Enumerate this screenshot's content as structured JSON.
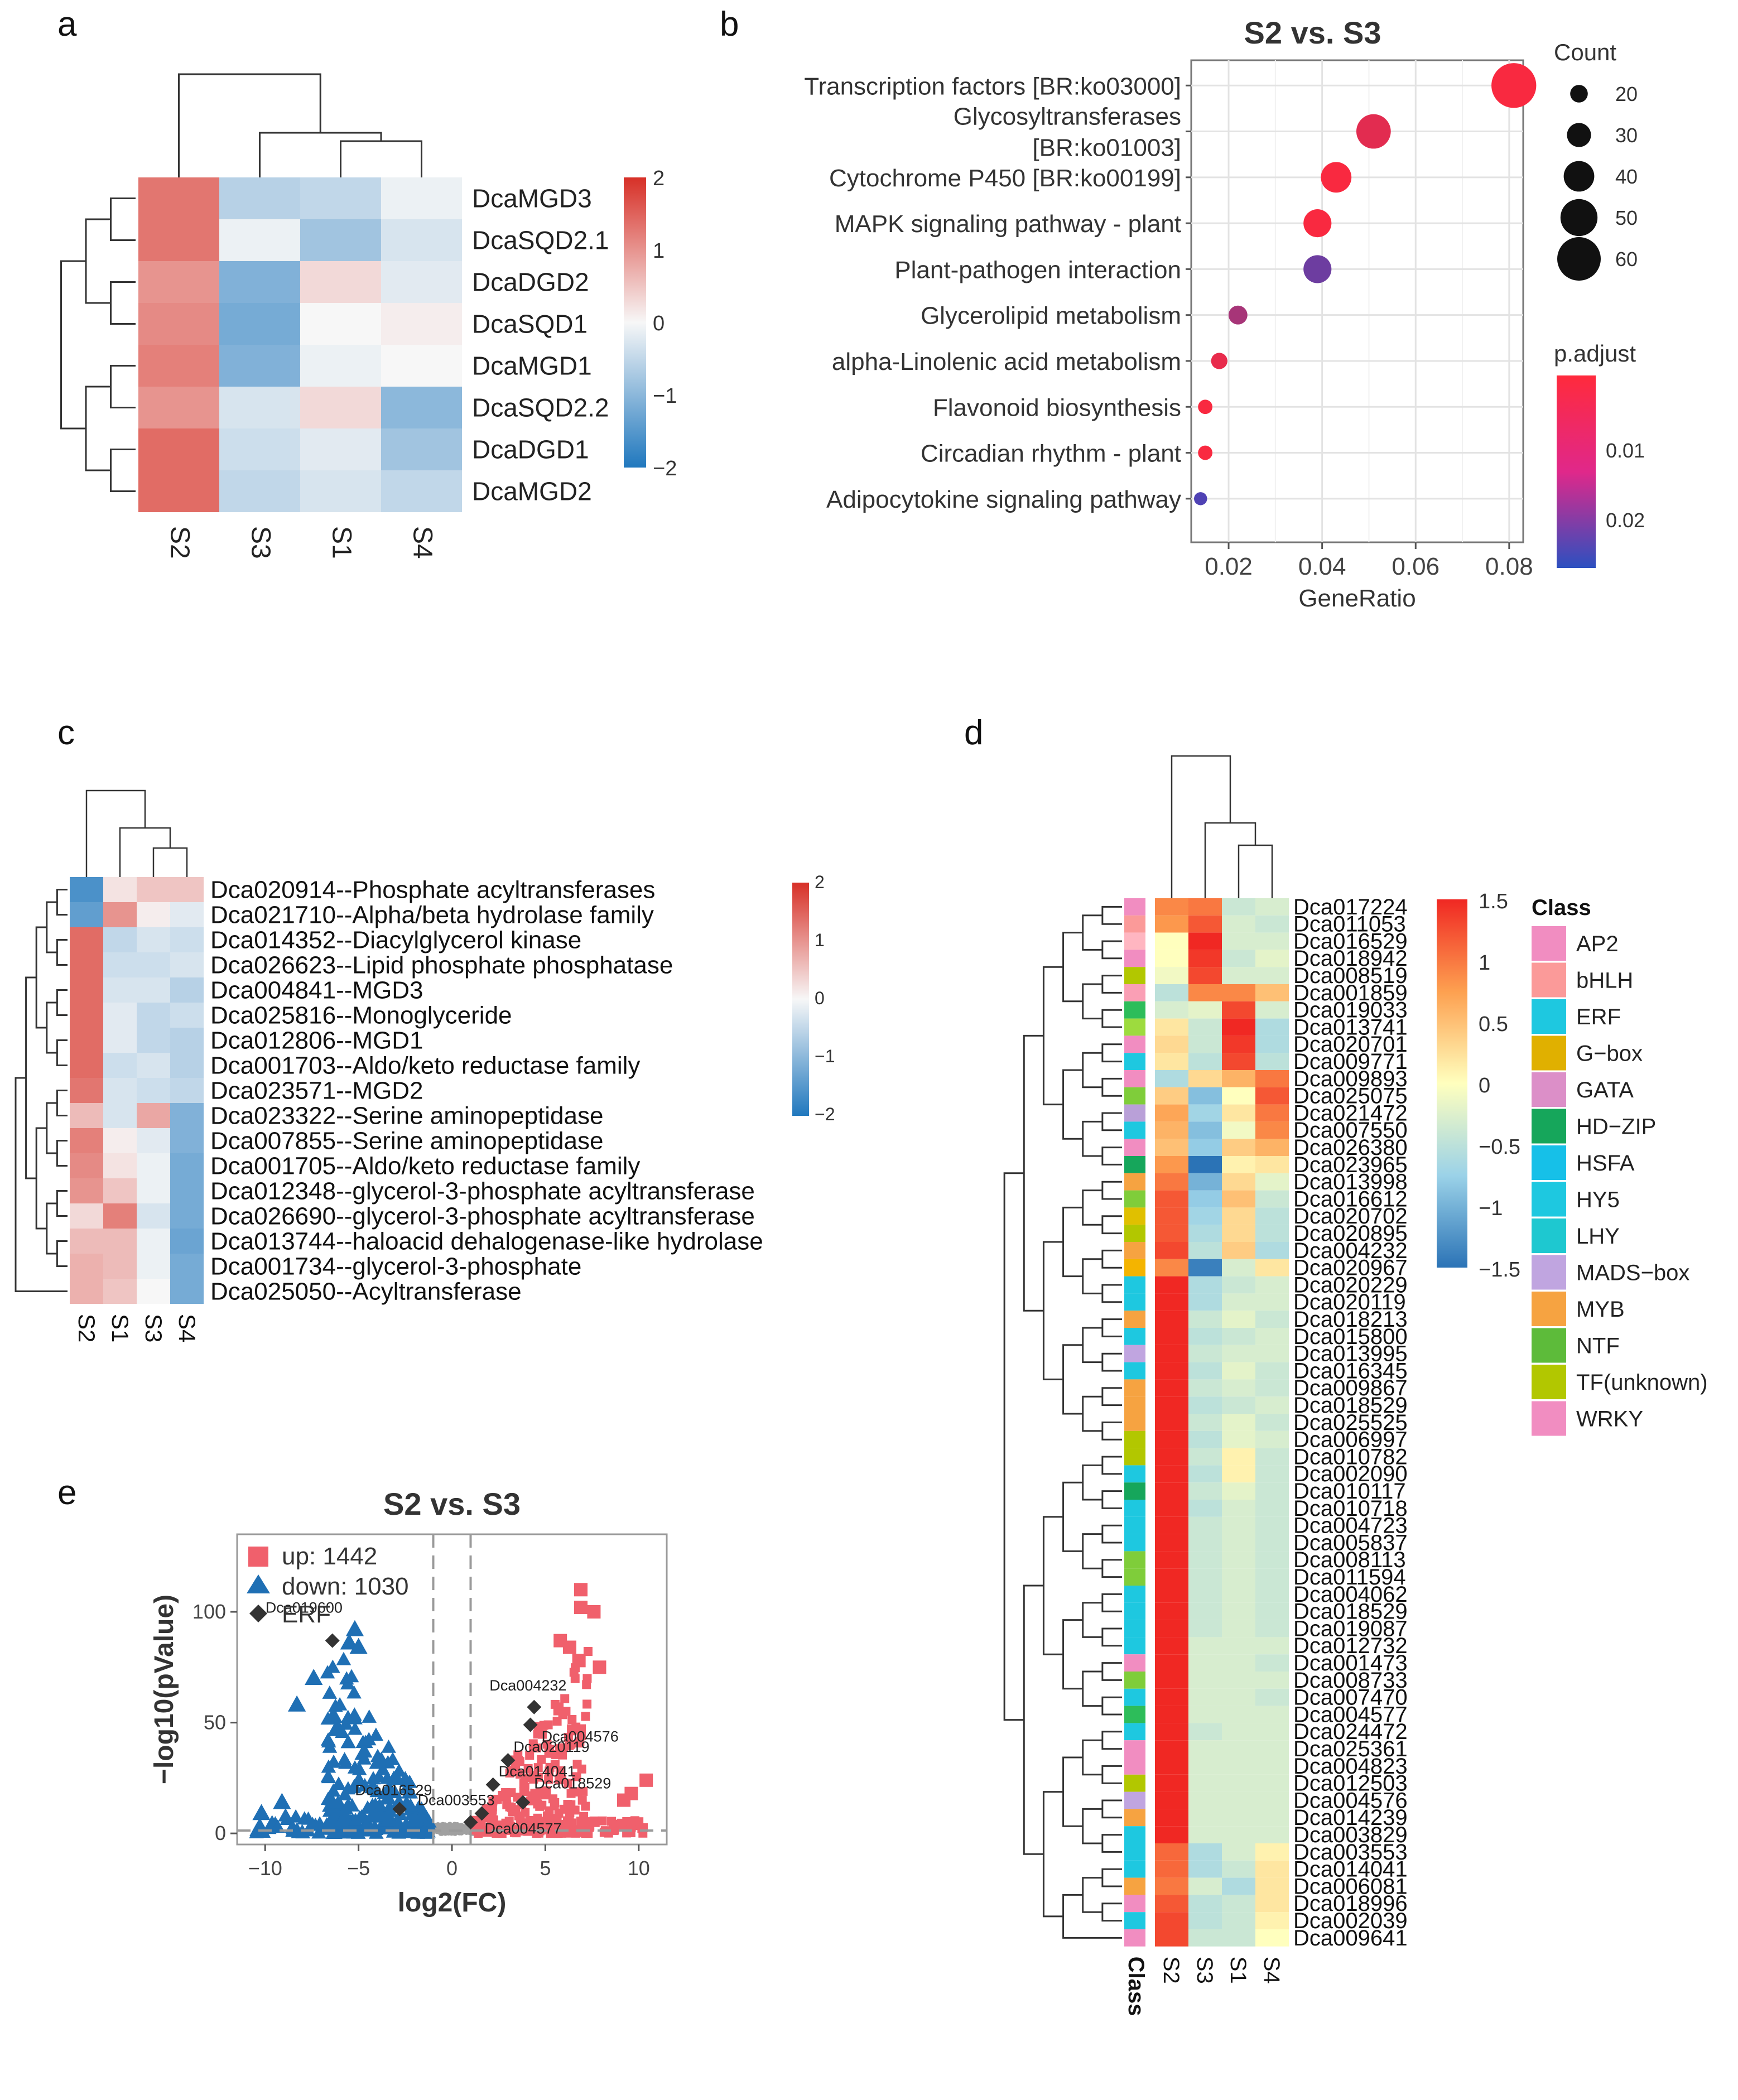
{
  "panel_labels": [
    "a",
    "b",
    "c",
    "d",
    "e"
  ],
  "chart_data": [
    {
      "panel": "a",
      "type": "heatmap",
      "rows": [
        "DcaMGD3",
        "DcaSQD2.1",
        "DcaDGD2",
        "DcaSQD1",
        "DcaMGD1",
        "DcaSQD2.2",
        "DcaDGD1",
        "DcaMGD2"
      ],
      "columns": [
        "S2",
        "S3",
        "S1",
        "S4"
      ],
      "values": [
        [
          1.3,
          -0.6,
          -0.5,
          -0.1
        ],
        [
          1.3,
          -0.1,
          -0.8,
          -0.3
        ],
        [
          1.0,
          -1.1,
          0.3,
          -0.2
        ],
        [
          1.1,
          -1.2,
          0.0,
          0.1
        ],
        [
          1.2,
          -1.1,
          -0.1,
          0.0
        ],
        [
          1.0,
          -0.3,
          0.3,
          -1.0
        ],
        [
          1.4,
          -0.4,
          -0.2,
          -0.8
        ],
        [
          1.4,
          -0.5,
          -0.3,
          -0.5
        ]
      ],
      "legend_ticks": [
        "2",
        "1",
        "0",
        "−1",
        "−2"
      ],
      "legend_range": [
        -2,
        2
      ]
    },
    {
      "panel": "b",
      "type": "scatter",
      "title": "S2 vs. S3",
      "xlabel": "GeneRatio",
      "x_ticks": [
        "0.02",
        "0.04",
        "0.06",
        "0.08"
      ],
      "xlim": [
        0.012,
        0.083
      ],
      "terms": [
        "Transcription factors [BR:ko03000]",
        "Glycosyltransferases [BR:ko01003]",
        "Cytochrome P450 [BR:ko00199]",
        "MAPK signaling pathway - plant",
        "Plant-pathogen interaction",
        "Glycerolipid metabolism",
        "alpha-Linolenic acid metabolism",
        "Flavonoid biosynthesis",
        "Circadian rhythm - plant",
        "Adipocytokine signaling pathway"
      ],
      "term_lines": [
        [
          "Transcription factors [BR:ko03000]"
        ],
        [
          "Glycosyltransferases",
          "[BR:ko01003]"
        ],
        [
          "Cytochrome P450 [BR:ko00199]"
        ],
        [
          "MAPK signaling pathway - plant"
        ],
        [
          "Plant-pathogen interaction"
        ],
        [
          "Glycerolipid metabolism"
        ],
        [
          "alpha-Linolenic acid metabolism"
        ],
        [
          "Flavonoid biosynthesis"
        ],
        [
          "Circadian rhythm - plant"
        ],
        [
          "Adipocytokine signaling pathway"
        ]
      ],
      "gene_ratio": [
        0.081,
        0.051,
        0.043,
        0.039,
        0.039,
        0.022,
        0.018,
        0.015,
        0.015,
        0.014
      ],
      "count": [
        62,
        46,
        40,
        36,
        36,
        22,
        18,
        15,
        15,
        13
      ],
      "p_adjust": [
        0.001,
        0.005,
        0.001,
        0.001,
        0.025,
        0.015,
        0.004,
        0.001,
        0.001,
        0.03
      ],
      "size_legend_title": "Count",
      "size_legend": [
        "20",
        "30",
        "40",
        "50",
        "60"
      ],
      "color_legend_title": "p.adjust",
      "color_legend_ticks": [
        "0.01",
        "0.02"
      ]
    },
    {
      "panel": "c",
      "type": "heatmap",
      "rows": [
        "Dca020914--Phosphate acyltransferases",
        "Dca021710--Alpha/beta hydrolase family",
        "Dca014352--Diacylglycerol kinase",
        "Dca026623--Lipid phosphate phosphatase",
        "Dca004841--MGD3",
        "Dca025816--Monoglyceride",
        "Dca012806--MGD1",
        "Dca001703--Aldo/keto reductase family",
        "Dca023571--MGD2",
        "Dca023322--Serine aminopeptidase",
        "Dca007855--Serine aminopeptidase",
        "Dca001705--Aldo/keto reductase family",
        "Dca012348--glycerol-3-phosphate acyltransferase",
        "Dca026690--glycerol-3-phosphate acyltransferase",
        "Dca013744--haloacid dehalogenase-like hydrolase",
        "Dca001734--glycerol-3-phosphate",
        "Dca025050--Acyltransferase"
      ],
      "columns": [
        "S2",
        "S1",
        "S3",
        "S4"
      ],
      "values": [
        [
          -1.6,
          0.2,
          0.5,
          0.5
        ],
        [
          -1.4,
          1.0,
          0.1,
          -0.2
        ],
        [
          1.4,
          -0.5,
          -0.3,
          -0.4
        ],
        [
          1.4,
          -0.4,
          -0.4,
          -0.3
        ],
        [
          1.4,
          -0.3,
          -0.3,
          -0.6
        ],
        [
          1.4,
          -0.2,
          -0.5,
          -0.4
        ],
        [
          1.4,
          -0.2,
          -0.5,
          -0.6
        ],
        [
          1.4,
          -0.4,
          -0.3,
          -0.6
        ],
        [
          1.3,
          -0.3,
          -0.4,
          -0.5
        ],
        [
          0.6,
          -0.3,
          0.8,
          -1.1
        ],
        [
          1.2,
          0.1,
          -0.2,
          -1.1
        ],
        [
          1.1,
          0.2,
          -0.1,
          -1.2
        ],
        [
          1.0,
          0.5,
          -0.1,
          -1.2
        ],
        [
          0.3,
          1.2,
          -0.3,
          -1.2
        ],
        [
          0.6,
          0.6,
          -0.1,
          -1.3
        ],
        [
          0.7,
          0.6,
          -0.1,
          -1.2
        ],
        [
          0.7,
          0.5,
          0.0,
          -1.2
        ]
      ],
      "legend_ticks": [
        "2",
        "1",
        "0",
        "−1",
        "−2"
      ],
      "legend_range": [
        -2,
        2
      ]
    },
    {
      "panel": "d",
      "type": "heatmap",
      "rows": [
        "Dca017224",
        "Dca011053",
        "Dca016529",
        "Dca018942",
        "Dca008519",
        "Dca001859",
        "Dca019033",
        "Dca013741",
        "Dca020701",
        "Dca009771",
        "Dca009893",
        "Dca025075",
        "Dca021472",
        "Dca007550",
        "Dca026380",
        "Dca023965",
        "Dca013998",
        "Dca016612",
        "Dca020702",
        "Dca020895",
        "Dca004232",
        "Dca020967",
        "Dca020229",
        "Dca020119",
        "Dca018213",
        "Dca015800",
        "Dca013995",
        "Dca016345",
        "Dca009867",
        "Dca018529",
        "Dca025525",
        "Dca006997",
        "Dca010782",
        "Dca002090",
        "Dca010117",
        "Dca010718",
        "Dca004723",
        "Dca005837",
        "Dca008113",
        "Dca011594",
        "Dca004062",
        "Dca018529",
        "Dca019087",
        "Dca012732",
        "Dca001473",
        "Dca008733",
        "Dca007470",
        "Dca004577",
        "Dca024472",
        "Dca025361",
        "Dca004823",
        "Dca012503",
        "Dca004576",
        "Dca014239",
        "Dca003829",
        "Dca003553",
        "Dca014041",
        "Dca006081",
        "Dca018996",
        "Dca002039",
        "Dca009641"
      ],
      "columns": [
        "S2",
        "S3",
        "S1",
        "S4"
      ],
      "class_colors": [
        "#f18dc1",
        "#fb9a99",
        "#ffb6c1",
        "#f18dc1",
        "#b2c700",
        "#fa9fb5",
        "#2dbd5a",
        "#9ddb3e",
        "#f18dc1",
        "#1ec8e0",
        "#f18dc1",
        "#7fcd3a",
        "#b9a0d8",
        "#1ec8e0",
        "#f18dc1",
        "#16a65b",
        "#f6a341",
        "#7fcd3a",
        "#e0c000",
        "#b2c700",
        "#f6a341",
        "#f4b400",
        "#1ec8e0",
        "#1ec8e0",
        "#f6a341",
        "#1ec8e0",
        "#c0a5e0",
        "#1ec8e0",
        "#f6a341",
        "#f6a341",
        "#f6a341",
        "#b2c700",
        "#b2c700",
        "#1ec8e0",
        "#16a65b",
        "#1ec8e0",
        "#1ec8e0",
        "#1ec8e0",
        "#7fcd3a",
        "#7fcd3a",
        "#1ec8e0",
        "#1ec8e0",
        "#1ec8e0",
        "#1ec8e0",
        "#f18dc1",
        "#7fcd3a",
        "#1ec8e0",
        "#2dbd5a",
        "#1ec8e0",
        "#f18dc1",
        "#f18dc1",
        "#b2c700",
        "#c0a5e0",
        "#f6a341",
        "#1ec8e0",
        "#1ec8e0",
        "#1ec8e0",
        "#f6a341",
        "#f18dc1",
        "#1ec8e0",
        "#f18dc1"
      ],
      "values": [
        [
          0.9,
          1.0,
          -0.4,
          -0.3
        ],
        [
          0.8,
          1.2,
          -0.3,
          -0.4
        ],
        [
          0.0,
          1.5,
          -0.3,
          -0.3
        ],
        [
          0.0,
          1.4,
          -0.4,
          -0.2
        ],
        [
          -0.1,
          1.3,
          -0.3,
          -0.3
        ],
        [
          -0.5,
          0.9,
          0.9,
          0.5
        ],
        [
          -0.3,
          -0.2,
          1.3,
          -0.3
        ],
        [
          0.2,
          -0.4,
          1.5,
          -0.6
        ],
        [
          0.3,
          -0.4,
          1.4,
          -0.6
        ],
        [
          0.2,
          -0.5,
          1.3,
          -0.5
        ],
        [
          -0.6,
          0.3,
          0.6,
          1.0
        ],
        [
          0.4,
          -0.9,
          0.0,
          1.2
        ],
        [
          0.7,
          -0.7,
          0.2,
          1.0
        ],
        [
          0.6,
          -0.9,
          -0.1,
          0.9
        ],
        [
          0.5,
          -0.8,
          0.4,
          0.6
        ],
        [
          0.8,
          -1.5,
          0.1,
          0.2
        ],
        [
          1.0,
          -1.0,
          0.3,
          -0.2
        ],
        [
          1.2,
          -0.8,
          0.5,
          -0.4
        ],
        [
          1.2,
          -0.7,
          0.3,
          -0.5
        ],
        [
          1.2,
          -0.6,
          0.3,
          -0.5
        ],
        [
          1.3,
          -0.5,
          0.4,
          -0.6
        ],
        [
          0.9,
          -1.4,
          -0.3,
          0.2
        ],
        [
          1.5,
          -0.6,
          -0.4,
          -0.3
        ],
        [
          1.5,
          -0.6,
          -0.3,
          -0.3
        ],
        [
          1.5,
          -0.4,
          -0.2,
          -0.4
        ],
        [
          1.5,
          -0.5,
          -0.4,
          -0.3
        ],
        [
          1.5,
          -0.4,
          -0.3,
          -0.3
        ],
        [
          1.5,
          -0.5,
          -0.2,
          -0.4
        ],
        [
          1.5,
          -0.4,
          -0.3,
          -0.4
        ],
        [
          1.5,
          -0.5,
          -0.4,
          -0.3
        ],
        [
          1.5,
          -0.4,
          -0.2,
          -0.4
        ],
        [
          1.5,
          -0.5,
          -0.2,
          -0.3
        ],
        [
          1.5,
          -0.4,
          0.1,
          -0.4
        ],
        [
          1.5,
          -0.5,
          0.1,
          -0.4
        ],
        [
          1.5,
          -0.4,
          -0.2,
          -0.4
        ],
        [
          1.5,
          -0.5,
          -0.3,
          -0.4
        ],
        [
          1.5,
          -0.4,
          -0.3,
          -0.4
        ],
        [
          1.5,
          -0.4,
          -0.3,
          -0.4
        ],
        [
          1.5,
          -0.4,
          -0.3,
          -0.4
        ],
        [
          1.5,
          -0.4,
          -0.3,
          -0.4
        ],
        [
          1.5,
          -0.4,
          -0.3,
          -0.4
        ],
        [
          1.5,
          -0.4,
          -0.3,
          -0.4
        ],
        [
          1.5,
          -0.4,
          -0.3,
          -0.4
        ],
        [
          1.5,
          -0.3,
          -0.3,
          -0.3
        ],
        [
          1.5,
          -0.3,
          -0.3,
          -0.4
        ],
        [
          1.5,
          -0.3,
          -0.3,
          -0.3
        ],
        [
          1.5,
          -0.3,
          -0.3,
          -0.4
        ],
        [
          1.5,
          -0.3,
          -0.3,
          -0.3
        ],
        [
          1.5,
          -0.4,
          -0.3,
          -0.3
        ],
        [
          1.5,
          -0.3,
          -0.3,
          -0.3
        ],
        [
          1.5,
          -0.3,
          -0.3,
          -0.3
        ],
        [
          1.5,
          -0.3,
          -0.3,
          -0.3
        ],
        [
          1.5,
          -0.3,
          -0.3,
          -0.3
        ],
        [
          1.5,
          -0.3,
          -0.3,
          -0.3
        ],
        [
          1.5,
          -0.3,
          -0.3,
          -0.3
        ],
        [
          1.1,
          -0.6,
          -0.3,
          0.1
        ],
        [
          1.1,
          -0.6,
          -0.4,
          0.2
        ],
        [
          1.0,
          -0.3,
          -0.6,
          0.2
        ],
        [
          1.2,
          -0.5,
          -0.4,
          0.2
        ],
        [
          1.3,
          -0.5,
          -0.4,
          0.1
        ],
        [
          1.3,
          -0.4,
          -0.4,
          0.0
        ]
      ],
      "class_axis_label": "Class",
      "legend_ticks": [
        "1.5",
        "1",
        "0.5",
        "0",
        "−0.5",
        "−1",
        "−1.5"
      ],
      "legend_range": [
        -1.5,
        1.5
      ],
      "class_legend_title": "Class",
      "class_legend": [
        {
          "name": "AP2",
          "color": "#f18dc1"
        },
        {
          "name": "bHLH",
          "color": "#fb9a99"
        },
        {
          "name": "ERF",
          "color": "#1ec8e0"
        },
        {
          "name": "G−box",
          "color": "#e0b000"
        },
        {
          "name": "GATA",
          "color": "#dc8fc8"
        },
        {
          "name": "HD−ZIP",
          "color": "#16a65b"
        },
        {
          "name": "HSFA",
          "color": "#16c0e8"
        },
        {
          "name": "HY5",
          "color": "#1ec8e0"
        },
        {
          "name": "LHY",
          "color": "#1ec8d0"
        },
        {
          "name": "MADS−box",
          "color": "#c0a5e0"
        },
        {
          "name": "MYB",
          "color": "#f6a341"
        },
        {
          "name": "NTF",
          "color": "#5dbb3a"
        },
        {
          "name": "TF(unknown)",
          "color": "#b2c700"
        },
        {
          "name": "WRKY",
          "color": "#f18dc1"
        }
      ]
    },
    {
      "panel": "e",
      "type": "scatter",
      "title": "S2 vs. S3",
      "xlabel": "log2(FC)",
      "ylabel": "−log10(pValue)",
      "xlim": [
        -11.5,
        11.5
      ],
      "ylim": [
        -5,
        135
      ],
      "x_ticks": [
        -10,
        -5,
        0,
        5,
        10
      ],
      "x_tick_labels": [
        "−10",
        "−5",
        "0",
        "5",
        "10"
      ],
      "y_ticks": [
        0,
        50,
        100
      ],
      "y_tick_labels": [
        "0",
        "50",
        "100"
      ],
      "legend": [
        "up: 1442",
        "down: 1030",
        "ERF"
      ],
      "erf_points": [
        {
          "label": "Dca019600",
          "x": -6.4,
          "y": 87
        },
        {
          "label": "Dca004232",
          "x": 4.4,
          "y": 57
        },
        {
          "label": "Dca004576",
          "x": 4.2,
          "y": 49
        },
        {
          "label": "Dca020119",
          "x": 3.0,
          "y": 33
        },
        {
          "label": "Dca014041",
          "x": 2.2,
          "y": 22
        },
        {
          "label": "Dca018529",
          "x": 3.8,
          "y": 14
        },
        {
          "label": "Dca016529",
          "x": -2.8,
          "y": 11
        },
        {
          "label": "Dca003553",
          "x": 1.6,
          "y": 9
        },
        {
          "label": "Dca004577",
          "x": 1.0,
          "y": 5
        }
      ],
      "up_outliers": [
        [
          6.9,
          110
        ],
        [
          6.9,
          102
        ],
        [
          7.6,
          100
        ],
        [
          5.8,
          87
        ],
        [
          6.3,
          84
        ],
        [
          7.9,
          75
        ],
        [
          6.8,
          78
        ],
        [
          10.4,
          24
        ],
        [
          9.6,
          18
        ],
        [
          9.2,
          15
        ]
      ],
      "down_outliers": [
        [
          -5.2,
          92
        ],
        [
          -5.5,
          86
        ],
        [
          -5.0,
          84
        ],
        [
          -8.3,
          58
        ],
        [
          -9.1,
          14
        ],
        [
          -10.2,
          9
        ],
        [
          -7.4,
          70
        ]
      ]
    }
  ]
}
